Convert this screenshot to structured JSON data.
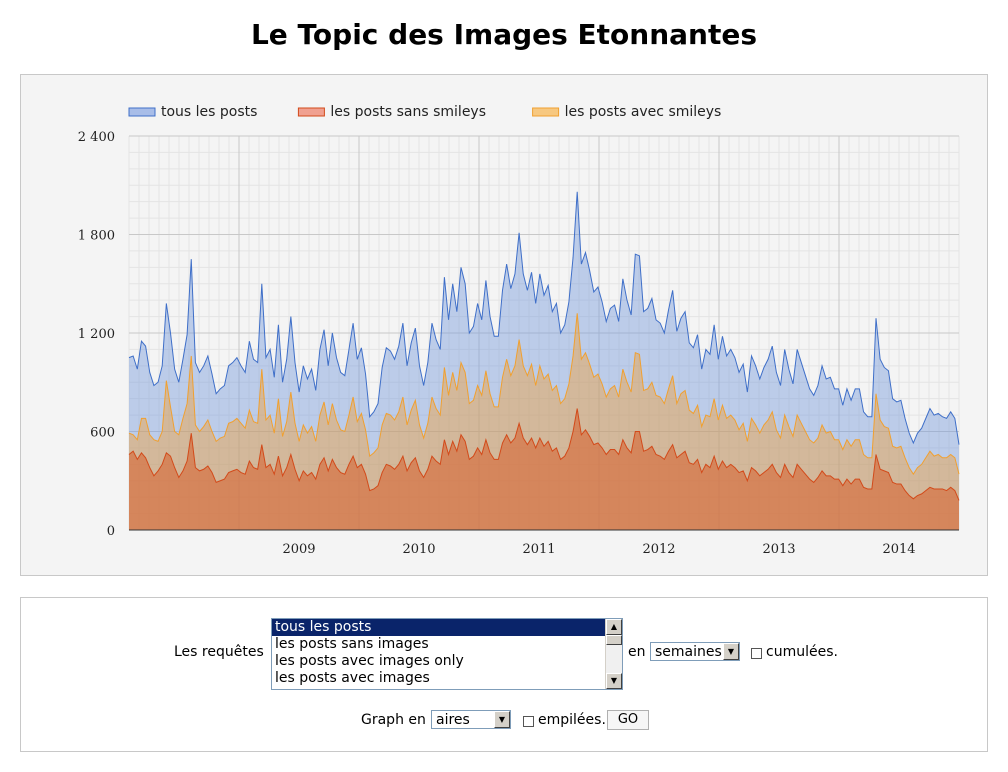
{
  "title": "Le Topic des Images Etonnantes",
  "chart_data": {
    "type": "area",
    "legend_position": "top-left",
    "grid": true,
    "ylim": [
      0,
      2400
    ],
    "yticks": [
      0,
      600,
      1200,
      1800,
      2400
    ],
    "ytick_labels": [
      "0",
      "600",
      "1 200",
      "1 800",
      "2 400"
    ],
    "x_range": [
      "2008-02",
      "2014-12"
    ],
    "xtick_labels": [
      "2009",
      "2010",
      "2011",
      "2012",
      "2013",
      "2014"
    ],
    "colors": {
      "tous les posts": "#3f6fc8",
      "les posts sans smileys": "#d24a1a",
      "les posts avec smileys": "#f0a030"
    },
    "series": [
      {
        "name": "tous les posts",
        "values": [
          1050,
          1060,
          980,
          1150,
          1120,
          960,
          880,
          900,
          1000,
          1380,
          1200,
          980,
          900,
          1040,
          1190,
          1650,
          1020,
          960,
          1000,
          1060,
          950,
          830,
          860,
          880,
          1000,
          1020,
          1050,
          1000,
          960,
          1150,
          1040,
          1020,
          1500,
          1050,
          1100,
          930,
          1250,
          900,
          1040,
          1300,
          1020,
          840,
          1000,
          920,
          980,
          850,
          1100,
          1220,
          1000,
          1200,
          1050,
          960,
          940,
          1100,
          1260,
          1040,
          1110,
          950,
          690,
          720,
          770,
          990,
          1110,
          1090,
          1040,
          1120,
          1260,
          1000,
          1140,
          1230,
          1000,
          880,
          1020,
          1260,
          1160,
          1100,
          1540,
          1280,
          1500,
          1330,
          1600,
          1500,
          1200,
          1240,
          1380,
          1280,
          1520,
          1300,
          1180,
          1180,
          1460,
          1620,
          1470,
          1560,
          1810,
          1560,
          1460,
          1570,
          1380,
          1560,
          1430,
          1490,
          1330,
          1380,
          1200,
          1250,
          1390,
          1660,
          2060,
          1620,
          1690,
          1580,
          1450,
          1480,
          1390,
          1270,
          1350,
          1370,
          1270,
          1530,
          1400,
          1310,
          1680,
          1670,
          1330,
          1350,
          1410,
          1280,
          1260,
          1200,
          1340,
          1460,
          1210,
          1290,
          1330,
          1140,
          1110,
          1190,
          980,
          1100,
          1070,
          1250,
          1040,
          1180,
          1060,
          1100,
          1050,
          960,
          1010,
          840,
          1060,
          1000,
          920,
          990,
          1040,
          1120,
          960,
          880,
          1100,
          980,
          890,
          1100,
          1020,
          940,
          860,
          820,
          880,
          1000,
          920,
          930,
          860,
          860,
          760,
          860,
          790,
          860,
          860,
          720,
          690,
          690,
          1290,
          1040,
          990,
          970,
          800,
          780,
          790,
          680,
          590,
          530,
          590,
          620,
          680,
          740,
          700,
          710,
          690,
          680,
          720,
          680,
          520
        ]
      },
      {
        "name": "les posts sans smileys",
        "values": [
          460,
          480,
          430,
          470,
          440,
          380,
          330,
          360,
          400,
          470,
          450,
          380,
          320,
          360,
          420,
          590,
          380,
          360,
          370,
          390,
          350,
          290,
          300,
          310,
          350,
          360,
          370,
          350,
          340,
          420,
          380,
          370,
          520,
          380,
          400,
          340,
          450,
          330,
          380,
          460,
          370,
          300,
          360,
          330,
          350,
          310,
          400,
          440,
          360,
          430,
          380,
          350,
          340,
          400,
          450,
          380,
          400,
          340,
          240,
          250,
          270,
          350,
          400,
          390,
          370,
          400,
          450,
          360,
          410,
          440,
          360,
          320,
          370,
          450,
          420,
          400,
          550,
          460,
          540,
          480,
          580,
          540,
          430,
          450,
          500,
          460,
          550,
          470,
          430,
          430,
          530,
          580,
          530,
          560,
          650,
          560,
          520,
          560,
          500,
          560,
          510,
          540,
          480,
          500,
          430,
          450,
          500,
          600,
          740,
          580,
          610,
          570,
          520,
          530,
          500,
          460,
          490,
          490,
          460,
          550,
          500,
          470,
          600,
          600,
          480,
          490,
          510,
          460,
          450,
          430,
          480,
          520,
          440,
          460,
          480,
          410,
          400,
          430,
          350,
          400,
          380,
          450,
          370,
          420,
          380,
          400,
          380,
          350,
          360,
          300,
          380,
          360,
          330,
          350,
          370,
          400,
          350,
          320,
          400,
          350,
          320,
          400,
          370,
          340,
          310,
          290,
          320,
          360,
          330,
          330,
          310,
          310,
          270,
          310,
          280,
          310,
          310,
          260,
          250,
          250,
          460,
          370,
          360,
          350,
          290,
          280,
          280,
          240,
          210,
          190,
          210,
          220,
          240,
          260,
          250,
          250,
          250,
          240,
          260,
          240,
          180
        ]
      },
      {
        "name": "les posts avec smileys",
        "values": [
          590,
          580,
          550,
          680,
          680,
          580,
          550,
          540,
          600,
          910,
          750,
          600,
          580,
          680,
          770,
          1060,
          640,
          600,
          630,
          670,
          600,
          540,
          560,
          570,
          650,
          660,
          680,
          650,
          620,
          730,
          660,
          650,
          980,
          670,
          700,
          590,
          800,
          570,
          660,
          840,
          650,
          540,
          640,
          590,
          630,
          540,
          700,
          780,
          640,
          770,
          670,
          610,
          600,
          700,
          810,
          660,
          710,
          610,
          450,
          470,
          500,
          640,
          710,
          700,
          670,
          720,
          810,
          640,
          730,
          790,
          640,
          560,
          650,
          810,
          740,
          700,
          990,
          820,
          960,
          850,
          1020,
          960,
          770,
          790,
          880,
          820,
          970,
          830,
          750,
          750,
          930,
          1040,
          940,
          1000,
          1160,
          1000,
          940,
          1010,
          880,
          1000,
          920,
          950,
          850,
          880,
          770,
          800,
          890,
          1060,
          1320,
          1040,
          1080,
          1010,
          930,
          950,
          890,
          810,
          860,
          880,
          810,
          980,
          900,
          840,
          1080,
          1070,
          850,
          860,
          900,
          820,
          810,
          770,
          860,
          940,
          770,
          830,
          850,
          730,
          710,
          760,
          630,
          700,
          690,
          800,
          670,
          760,
          680,
          700,
          670,
          610,
          650,
          540,
          680,
          640,
          590,
          640,
          670,
          720,
          610,
          560,
          700,
          630,
          570,
          700,
          650,
          600,
          550,
          530,
          560,
          640,
          590,
          600,
          550,
          550,
          490,
          550,
          510,
          550,
          550,
          460,
          440,
          440,
          830,
          670,
          630,
          620,
          510,
          500,
          510,
          440,
          380,
          340,
          380,
          400,
          440,
          480,
          450,
          460,
          440,
          440,
          460,
          440,
          340
        ]
      }
    ]
  },
  "controls": {
    "requetes_label": "Les requêtes",
    "listbox_options": [
      "tous les posts",
      "les posts sans images",
      "les posts avec images only",
      "les posts avec images"
    ],
    "listbox_selected": "tous les posts",
    "en_label": "en",
    "period_select_value": "semaines",
    "cumulees_label": "cumulées.",
    "graph_label": "Graph en",
    "graph_select_value": "aires",
    "empilees_label": "empilées.",
    "go_label": "GO"
  }
}
